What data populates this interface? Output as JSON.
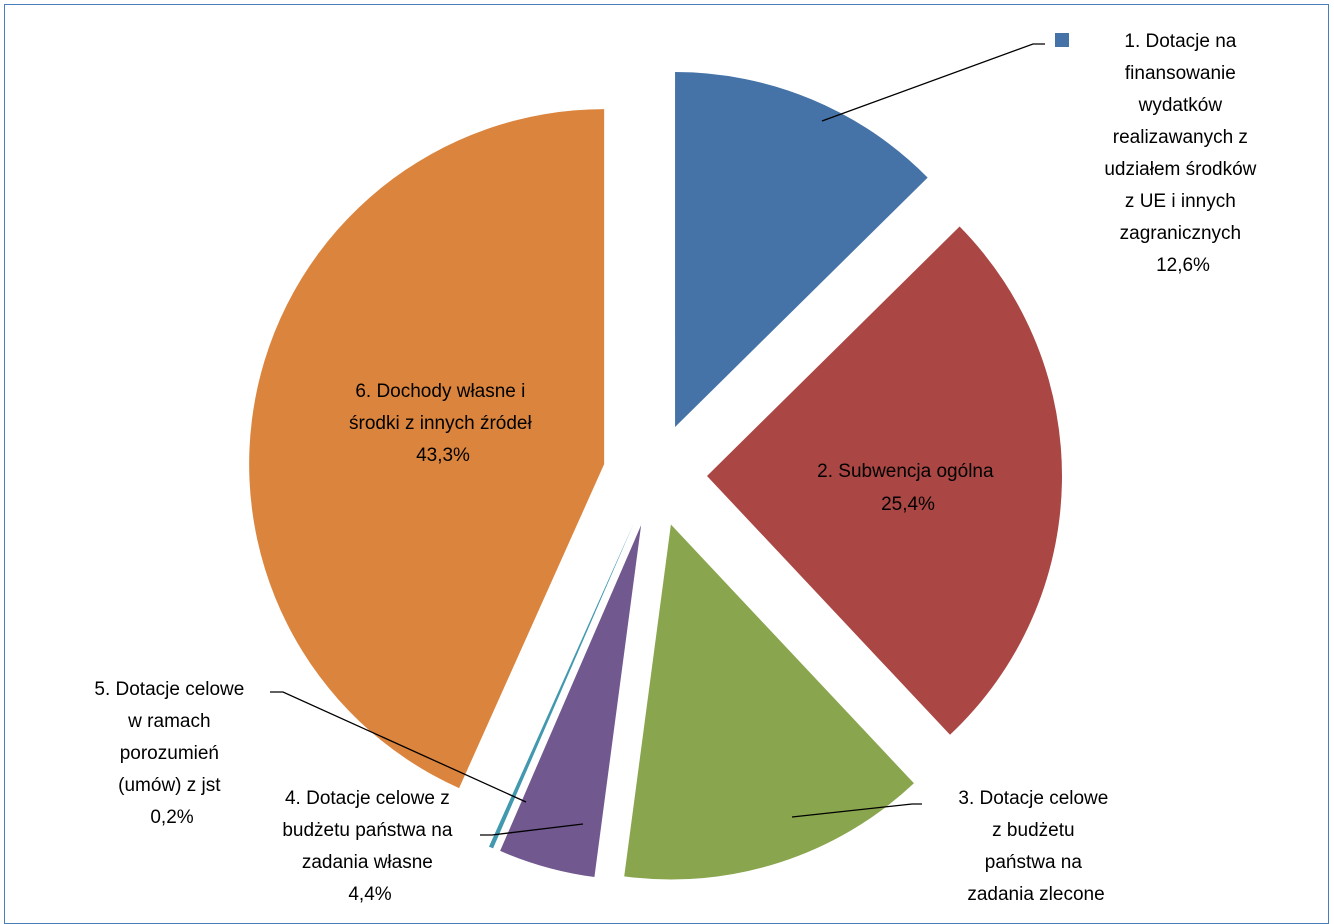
{
  "chart_data": {
    "type": "pie",
    "exploded": true,
    "grid": false,
    "legend": "none",
    "slices": [
      {
        "label": "1. Dotacje na finansowanie wydatków realizawanych z udziałem środków z UE i innych zagranicznych",
        "value": 12.6,
        "value_label": "12,6%",
        "color": "#4572a7"
      },
      {
        "label": "2. Subwencja ogólna",
        "value": 25.4,
        "value_label": "25,4%",
        "color": "#aa4643"
      },
      {
        "label": "3. Dotacje celowe z budżetu państwa na zadania zlecone",
        "value": 14.1,
        "value_label": "",
        "color": "#89a54e"
      },
      {
        "label": "4. Dotacje celowe z budżetu państwa na zadania własne",
        "value": 4.4,
        "value_label": "4,4%",
        "color": "#71588f"
      },
      {
        "label": "5. Dotacje celowe w ramach porozumień (umów) z jst",
        "value": 0.2,
        "value_label": "0,2%",
        "color": "#4198af"
      },
      {
        "label": "6. Dochody własne i środki z innych źródeł",
        "value": 43.3,
        "value_label": "43,3%",
        "color": "#db843d"
      }
    ]
  },
  "labels": {
    "s1": [
      "1. Dotacje na",
      "finansowanie",
      "wydatków",
      "realizawanych z",
      "udziałem środków",
      "z UE i innych",
      "zagranicznych",
      "12,6%"
    ],
    "s2": [
      "2. Subwencja ogólna",
      "25,4%"
    ],
    "s3": [
      "3. Dotacje celowe",
      "z budżetu",
      "państwa na",
      "zadania zlecone"
    ],
    "s4": [
      "4. Dotacje celowe z",
      "budżetu państwa na",
      "zadania własne",
      "4,4%"
    ],
    "s5": [
      "5. Dotacje celowe",
      "w ramach",
      "porozumień",
      "(umów) z jst",
      "0,2%"
    ],
    "s6": [
      "6. Dochody własne i",
      "środki z innych źródeł",
      "43,3%"
    ]
  }
}
